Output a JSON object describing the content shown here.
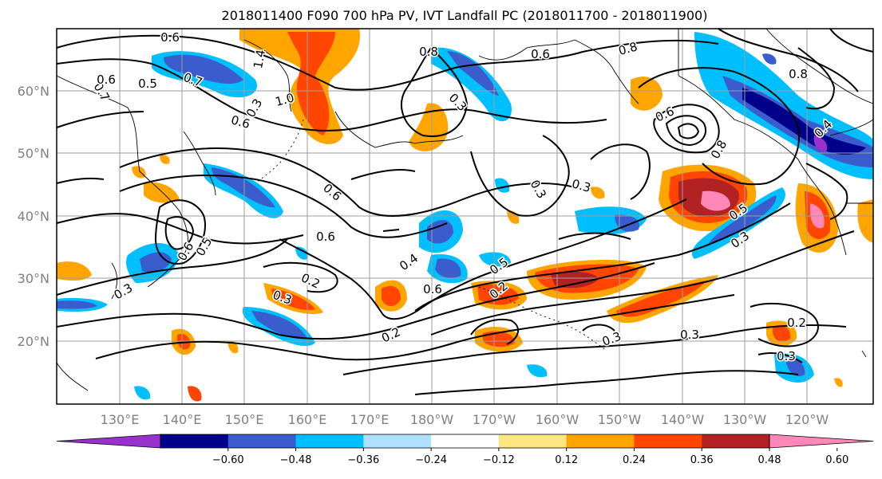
{
  "title": "2018011400 F090 700 hPa PV, IVT Landfall PC (2018011700 - 2018011900)",
  "lat_labels": [
    "60°N",
    "50°N",
    "40°N",
    "30°N",
    "20°N"
  ],
  "lon_labels": [
    "130°E",
    "140°E",
    "150°E",
    "160°E",
    "170°E",
    "180°W",
    "170°W",
    "160°W",
    "150°W",
    "140°W",
    "130°W",
    "120°W"
  ],
  "colorbar": {
    "ticks": [
      "−0.60",
      "−0.48",
      "−0.36",
      "−0.24",
      "−0.12",
      "0.12",
      "0.24",
      "0.36",
      "0.48",
      "0.60"
    ],
    "colors": [
      "#9932cc",
      "#00008b",
      "#3a5ccc",
      "#00bfff",
      "#b0e0ff",
      "#ffffff",
      "#ffe680",
      "#ffa500",
      "#ff4500",
      "#b22222",
      "#ff88b8"
    ]
  },
  "contour_labels": [
    "0.6",
    "0.7",
    "0.5",
    "0.6",
    "1.0",
    "0.8",
    "0.3",
    "0.6",
    "0.8",
    "0.8",
    "0.6",
    "0.8",
    "0.6",
    "0.3",
    "0.3",
    "0.6",
    "0.3",
    "0.4",
    "0.6",
    "0.5",
    "0.2",
    "0.2",
    "0.3",
    "0.2",
    "0.3",
    "0.3",
    "0.2",
    "0.3",
    "0.6",
    "0.5",
    "0.3",
    "0.5",
    "0.3",
    "0.4",
    "1.4",
    "0.7",
    "0.6"
  ]
}
